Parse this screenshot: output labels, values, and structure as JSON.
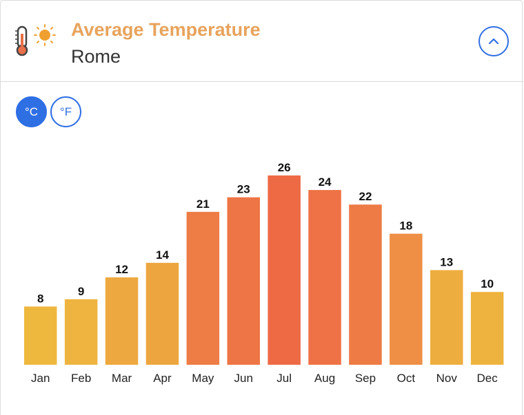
{
  "header": {
    "title": "Average Temperature",
    "subtitle": "Rome",
    "icon": "thermometer-sun-icon",
    "collapse_icon": "chevron-up-icon"
  },
  "units": {
    "celsius_label": "°C",
    "fahrenheit_label": "°F",
    "selected": "celsius"
  },
  "colors": {
    "accent": "#2f6fe4",
    "title": "#e8a35c"
  },
  "chart_data": {
    "type": "bar",
    "categories": [
      "Jan",
      "Feb",
      "Mar",
      "Apr",
      "May",
      "Jun",
      "Jul",
      "Aug",
      "Sep",
      "Oct",
      "Nov",
      "Dec"
    ],
    "values": [
      8,
      9,
      12,
      14,
      21,
      23,
      26,
      24,
      22,
      18,
      13,
      10
    ],
    "colors": [
      "#eeb83f",
      "#eeb43f",
      "#eda93f",
      "#eda63f",
      "#ee7c45",
      "#ee7545",
      "#ed6a45",
      "#ee7245",
      "#ee7a45",
      "#ee8f45",
      "#eeae3f",
      "#eeb33f"
    ],
    "ylim": [
      0,
      26
    ],
    "grid": false,
    "legend": "none"
  }
}
